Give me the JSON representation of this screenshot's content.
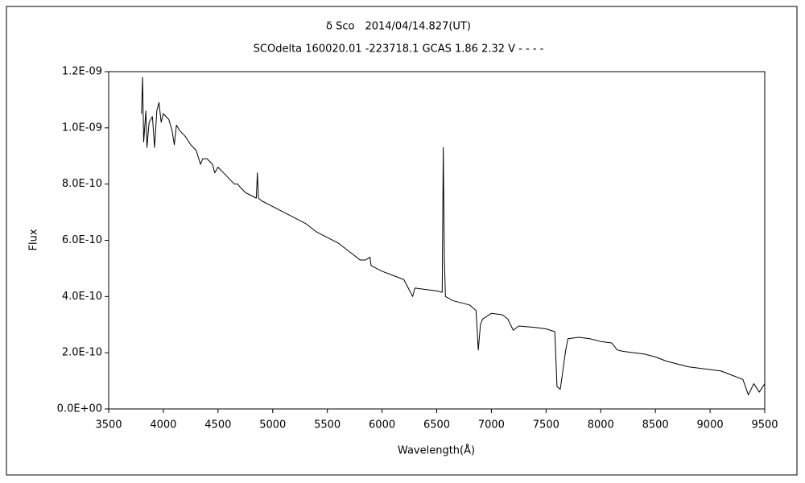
{
  "chart_data": {
    "type": "line",
    "title": "δ Sco　2014/04/14.827(UT)",
    "subtitle": "SCOdelta 160020.01 -223718.1 GCAS 1.86 2.32 V - - - -",
    "x_label": "Wavelength(Å)",
    "y_label": "Flux",
    "xlim": [
      3500,
      9500
    ],
    "xticks": [
      3500,
      4000,
      4500,
      5000,
      5500,
      6000,
      6500,
      7000,
      7500,
      8000,
      8500,
      9000,
      9500
    ],
    "ylim": [
      0,
      1.2e-09
    ],
    "yticks": [
      {
        "value": 0,
        "label": "0.0E+00"
      },
      {
        "value": 2e-10,
        "label": "2.0E-10"
      },
      {
        "value": 4e-10,
        "label": "4.0E-10"
      },
      {
        "value": 6e-10,
        "label": "6.0E-10"
      },
      {
        "value": 8e-10,
        "label": "8.0E-10"
      },
      {
        "value": 1e-09,
        "label": "1.0E-09"
      },
      {
        "value": 1.2e-09,
        "label": "1.2E-09"
      }
    ],
    "grid": false,
    "series": [
      {
        "color": "#000000",
        "x": [
          3800,
          3810,
          3820,
          3840,
          3850,
          3870,
          3900,
          3920,
          3940,
          3960,
          3980,
          4000,
          4050,
          4080,
          4100,
          4120,
          4150,
          4200,
          4250,
          4300,
          4340,
          4360,
          4400,
          4450,
          4470,
          4500,
          4550,
          4600,
          4650,
          4680,
          4700,
          4750,
          4800,
          4850,
          4860,
          4870,
          4900,
          5000,
          5100,
          5200,
          5300,
          5400,
          5500,
          5600,
          5700,
          5800,
          5850,
          5890,
          5900,
          6000,
          6100,
          6200,
          6280,
          6300,
          6400,
          6500,
          6550,
          6560,
          6570,
          6580,
          6650,
          6800,
          6860,
          6880,
          6900,
          6920,
          7000,
          7100,
          7150,
          7200,
          7250,
          7400,
          7500,
          7580,
          7600,
          7630,
          7680,
          7700,
          7800,
          7900,
          8000,
          8100,
          8150,
          8200,
          8300,
          8400,
          8500,
          8600,
          8700,
          8800,
          8900,
          9000,
          9100,
          9200,
          9300,
          9350,
          9400,
          9450,
          9500
        ],
        "values": [
          1.05e-09,
          1.18e-09,
          9.5e-10,
          1.06e-09,
          9.3e-10,
          1.02e-09,
          1.04e-09,
          9.3e-10,
          1.06e-09,
          1.09e-09,
          1.02e-09,
          1.05e-09,
          1.03e-09,
          9.9e-10,
          9.4e-10,
          1.01e-09,
          9.9e-10,
          9.7e-10,
          9.4e-10,
          9.2e-10,
          8.7e-10,
          8.9e-10,
          8.9e-10,
          8.7e-10,
          8.4e-10,
          8.6e-10,
          8.4e-10,
          8.2e-10,
          8e-10,
          8e-10,
          7.9e-10,
          7.7e-10,
          7.6e-10,
          7.5e-10,
          8.4e-10,
          7.5e-10,
          7.4e-10,
          7.2e-10,
          7e-10,
          6.8e-10,
          6.6e-10,
          6.3e-10,
          6.1e-10,
          5.9e-10,
          5.6e-10,
          5.3e-10,
          5.3e-10,
          5.4e-10,
          5.1e-10,
          4.9e-10,
          4.75e-10,
          4.6e-10,
          4e-10,
          4.3e-10,
          4.25e-10,
          4.2e-10,
          4.15e-10,
          9.3e-10,
          5.3e-10,
          4e-10,
          3.85e-10,
          3.7e-10,
          3.5e-10,
          2.1e-10,
          3e-10,
          3.2e-10,
          3.4e-10,
          3.35e-10,
          3.2e-10,
          2.8e-10,
          2.95e-10,
          2.9e-10,
          2.85e-10,
          2.75e-10,
          8e-11,
          7e-11,
          2.1e-10,
          2.5e-10,
          2.55e-10,
          2.5e-10,
          2.4e-10,
          2.35e-10,
          2.1e-10,
          2.05e-10,
          2e-10,
          1.95e-10,
          1.85e-10,
          1.7e-10,
          1.6e-10,
          1.5e-10,
          1.45e-10,
          1.4e-10,
          1.35e-10,
          1.2e-10,
          1.05e-10,
          5e-11,
          9e-11,
          6e-11,
          9e-11
        ]
      }
    ]
  }
}
